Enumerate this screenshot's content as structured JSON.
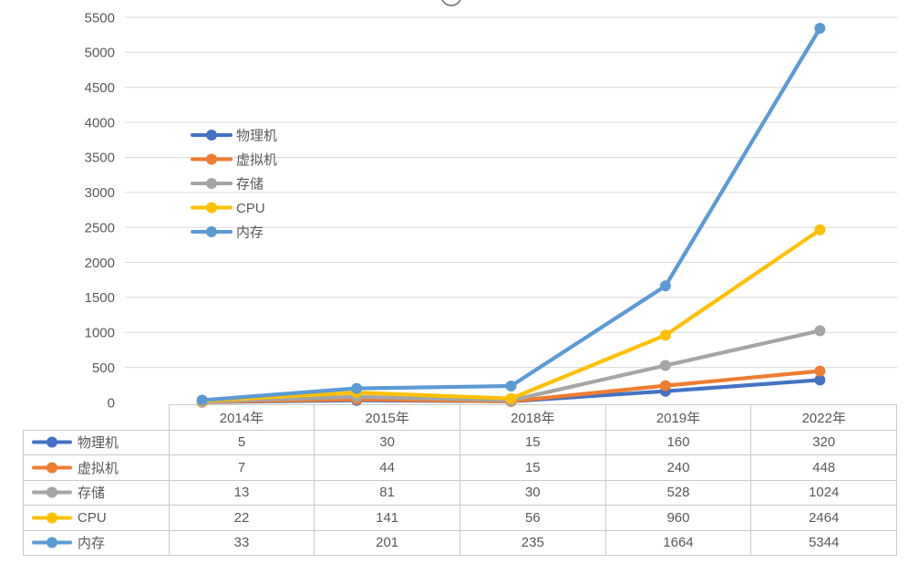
{
  "colors": {
    "background": "#FFFFFF",
    "gridline": "#D9D9D9",
    "axis_text": "#595959",
    "table_border": "#C9C9C9",
    "table_text": "#595959",
    "cropped_glyph_stroke": "#6E6E6E"
  },
  "chart_data": {
    "type": "line",
    "categories": [
      "2014年",
      "2015年",
      "2018年",
      "2019年",
      "2022年"
    ],
    "series": [
      {
        "name": "物理机",
        "color": "#4472C4",
        "values": [
          5,
          30,
          15,
          160,
          320
        ]
      },
      {
        "name": "虚拟机",
        "color": "#ED7D31",
        "values": [
          7,
          44,
          15,
          240,
          448
        ]
      },
      {
        "name": "存储",
        "color": "#A5A5A5",
        "values": [
          13,
          81,
          30,
          528,
          1024
        ]
      },
      {
        "name": "CPU",
        "color": "#FFC000",
        "values": [
          22,
          141,
          56,
          960,
          2464
        ]
      },
      {
        "name": "内存",
        "color": "#5B9BD5",
        "values": [
          33,
          201,
          235,
          1664,
          5344
        ]
      }
    ],
    "y_ticks": [
      0,
      500,
      1000,
      1500,
      2000,
      2500,
      3000,
      3500,
      4000,
      4500,
      5000,
      5500
    ],
    "ylim": [
      0,
      5500
    ],
    "xlabel": "",
    "ylabel": "",
    "grid": true,
    "legend_position": "inside-upper-left",
    "marker": "circle",
    "data_table_shown": true
  }
}
